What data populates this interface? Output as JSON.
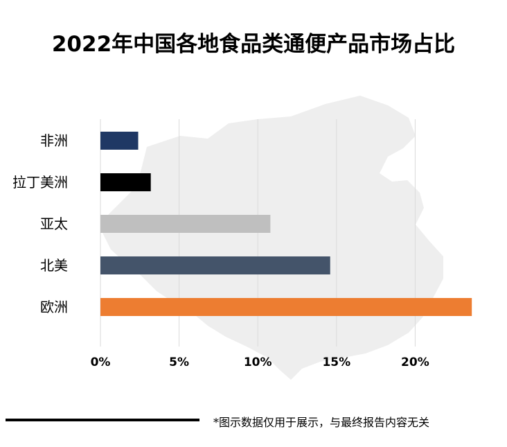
{
  "colors": {
    "grid": "#d9d9d9",
    "text": "#000000",
    "watermark": "#e8e8e8"
  },
  "chart_data": {
    "type": "bar",
    "orientation": "horizontal",
    "title": "2022年中国各地食品类通便产品市场占比",
    "categories": [
      "非洲",
      "拉丁美洲",
      "亚太",
      "北美",
      "欧洲"
    ],
    "values": [
      2.4,
      3.2,
      10.8,
      14.6,
      23.6
    ],
    "bar_colors": [
      "#1f3864",
      "#000000",
      "#bfbfbf",
      "#44546a",
      "#ed7d31"
    ],
    "xlim": [
      0,
      25
    ],
    "ticks": [
      0,
      5,
      10,
      15,
      20
    ],
    "tick_labels": [
      "0%",
      "5%",
      "10%",
      "15%",
      "20%"
    ],
    "grid": true,
    "legend": "none"
  },
  "footnote": "*图示数据仅用于展示，与最终报告内容无关"
}
